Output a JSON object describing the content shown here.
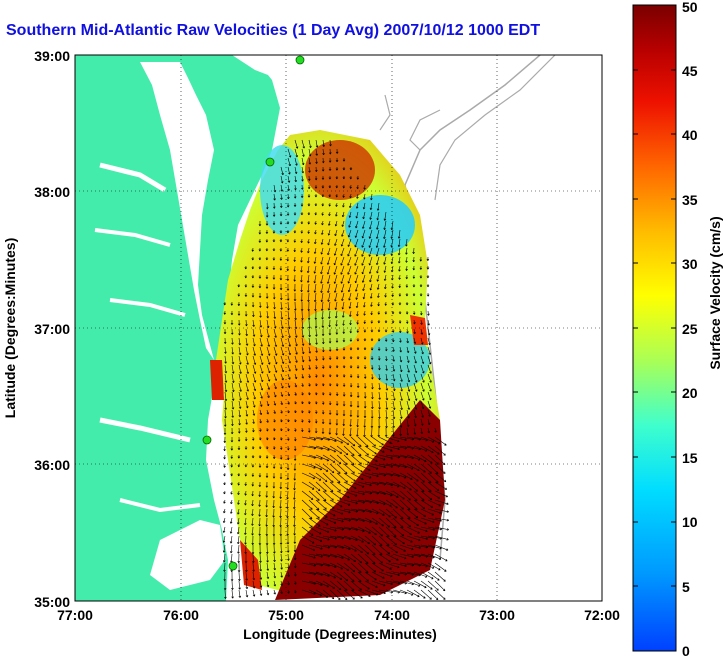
{
  "title": "Southern Mid-Atlantic Raw Velocities (1 Day Avg) 2007/10/12 1000 EDT",
  "axes": {
    "xlabel": "Longitude (Degrees:Minutes)",
    "ylabel": "Latitude (Degrees:Minutes)",
    "x_ticks": [
      "77:00",
      "76:00",
      "75:00",
      "74:00",
      "73:00",
      "72:00"
    ],
    "y_ticks": [
      "39:00",
      "38:00",
      "37:00",
      "36:00",
      "35:00"
    ],
    "xlim": [
      -77,
      -72
    ],
    "ylim": [
      35,
      39
    ],
    "grid": "dotted"
  },
  "colorbar": {
    "label": "Surface Velocity (cm/s)",
    "ticks": [
      "0",
      "5",
      "10",
      "15",
      "20",
      "25",
      "30",
      "35",
      "40",
      "45",
      "50"
    ],
    "min": 0,
    "max": 50,
    "colormap": "jet"
  },
  "colors": {
    "land": "#44ecac",
    "title": "#1010e0",
    "station": "#22dd22",
    "bathymetry": "#aaaaaa"
  }
}
